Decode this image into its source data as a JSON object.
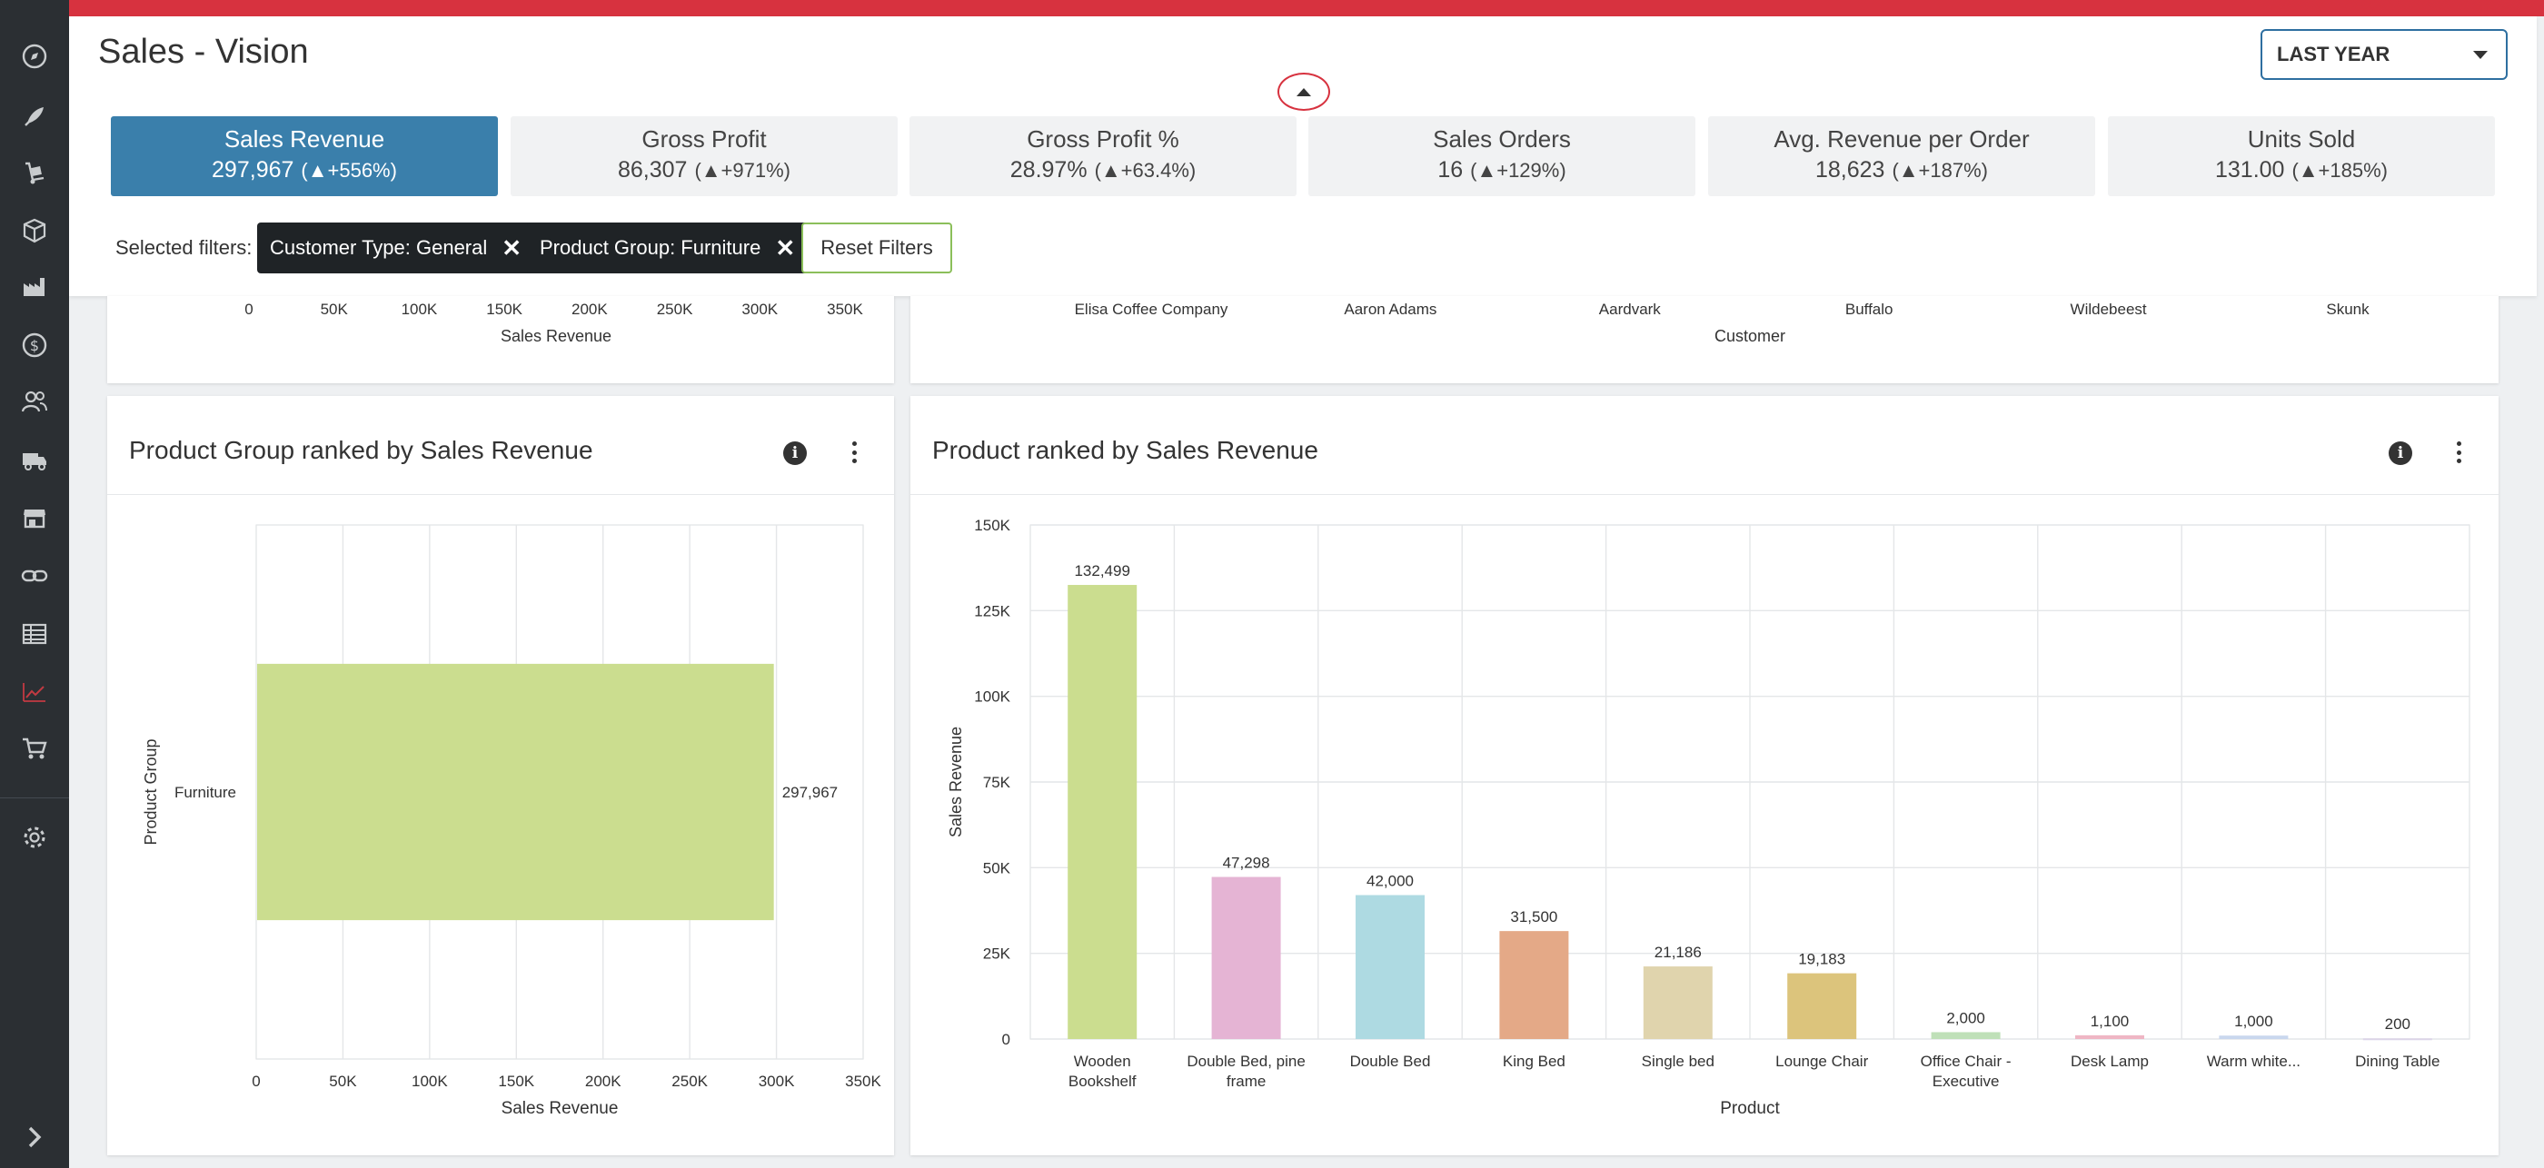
{
  "header": {
    "title": "Sales - Vision",
    "period": "LAST YEAR"
  },
  "kpis": [
    {
      "label": "Sales Revenue",
      "value": "297,967",
      "change": "(▲+556%)"
    },
    {
      "label": "Gross Profit",
      "value": "86,307",
      "change": "(▲+971%)"
    },
    {
      "label": "Gross Profit %",
      "value": "28.97%",
      "change": "(▲+63.4%)"
    },
    {
      "label": "Sales Orders",
      "value": "16",
      "change": "(▲+129%)"
    },
    {
      "label": "Avg. Revenue per Order",
      "value": "18,623",
      "change": "(▲+187%)"
    },
    {
      "label": "Units Sold",
      "value": "131.00",
      "change": "(▲+185%)"
    }
  ],
  "filters": {
    "label": "Selected filters:",
    "chips": [
      "Customer Type: General",
      "Product Group: Furniture"
    ],
    "reset_label": "Reset Filters"
  },
  "sidebar": {
    "icons": [
      "dashboard-icon",
      "rocket-icon",
      "dolly-icon",
      "box-icon",
      "factory-icon",
      "dollar-icon",
      "people-icon",
      "truck-icon",
      "store-icon",
      "link-icon",
      "table-icon",
      "trending-icon",
      "cart-icon",
      "gear-icon",
      "expand-icon"
    ]
  },
  "top_left_card": {
    "ticks": [
      "0",
      "50K",
      "100K",
      "150K",
      "200K",
      "250K",
      "300K",
      "350K"
    ],
    "xlabel": "Sales Revenue"
  },
  "top_right_card": {
    "categories": [
      "Elisa Coffee Company",
      "Aaron Adams",
      "Aardvark",
      "Buffalo",
      "Wildebeest",
      "Skunk"
    ],
    "xlabel": "Customer"
  },
  "product_group_card": {
    "title": "Product Group ranked by Sales Revenue",
    "chart_data": {
      "type": "bar",
      "orientation": "horizontal",
      "categories": [
        "Furniture"
      ],
      "values": [
        297967
      ],
      "value_labels": [
        "297,967"
      ],
      "xlim": [
        0,
        350000
      ],
      "ticks": [
        "0",
        "50K",
        "100K",
        "150K",
        "200K",
        "250K",
        "300K",
        "350K"
      ],
      "xlabel": "Sales Revenue",
      "ylabel": "Product Group",
      "color": "#cbdd8f",
      "grid": true
    }
  },
  "product_card": {
    "title": "Product ranked by Sales Revenue",
    "chart_data": {
      "type": "bar",
      "categories": [
        [
          "Wooden",
          "Bookshelf"
        ],
        [
          "Double Bed, pine",
          "frame"
        ],
        [
          "Double Bed"
        ],
        [
          "King Bed"
        ],
        [
          "Single bed"
        ],
        [
          "Lounge Chair"
        ],
        [
          "Office Chair -",
          "Executive"
        ],
        [
          "Desk Lamp"
        ],
        [
          "Warm white..."
        ],
        [
          "Dining Table"
        ]
      ],
      "values": [
        132499,
        47298,
        42000,
        31500,
        21186,
        19183,
        2000,
        1100,
        1000,
        200
      ],
      "value_labels": [
        "132,499",
        "47,298",
        "42,000",
        "31,500",
        "21,186",
        "19,183",
        "2,000",
        "1,100",
        "1,000",
        "200"
      ],
      "colors": [
        "#cbdd8f",
        "#e5b4d4",
        "#aedae2",
        "#e4a987",
        "#e0d4ad",
        "#dcc47c",
        "#bfe0b8",
        "#efb6c4",
        "#c9d7ee",
        "#dcd5e8"
      ],
      "ylim": [
        0,
        150000
      ],
      "yticks": [
        "0",
        "25K",
        "50K",
        "75K",
        "100K",
        "125K",
        "150K"
      ],
      "xlabel": "Product",
      "ylabel": "Sales Revenue",
      "grid": true
    }
  }
}
